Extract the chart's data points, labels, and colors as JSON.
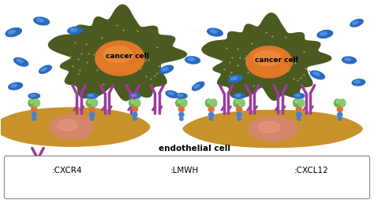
{
  "bg_color": "#ffffff",
  "endothelial_color": "#c8922a",
  "endothelial_nucleus_color": "#d4856a",
  "cancer_cell_color": "#4a5a20",
  "cancer_nucleus_color": "#e07828",
  "cxcr4_color": "#9b3ba0",
  "lmwh_color_dark": "#2a6abf",
  "lmwh_color_light": "#5a9aee",
  "cxcl12_green": "#6ab04c",
  "cxcl12_green2": "#88c870",
  "cxcl12_orange": "#e07030",
  "cxcl12_blue": "#4a7fd4",
  "legend_cxcr4_label": ":CXCR4",
  "legend_lmwh_label": ":LMWH",
  "legend_cxcl12_label": ":CXCL12",
  "cancer_label": "cancer cell",
  "endothelial_label": "endothelial cell",
  "fig_width": 4.74,
  "fig_height": 2.57,
  "dpi": 100
}
